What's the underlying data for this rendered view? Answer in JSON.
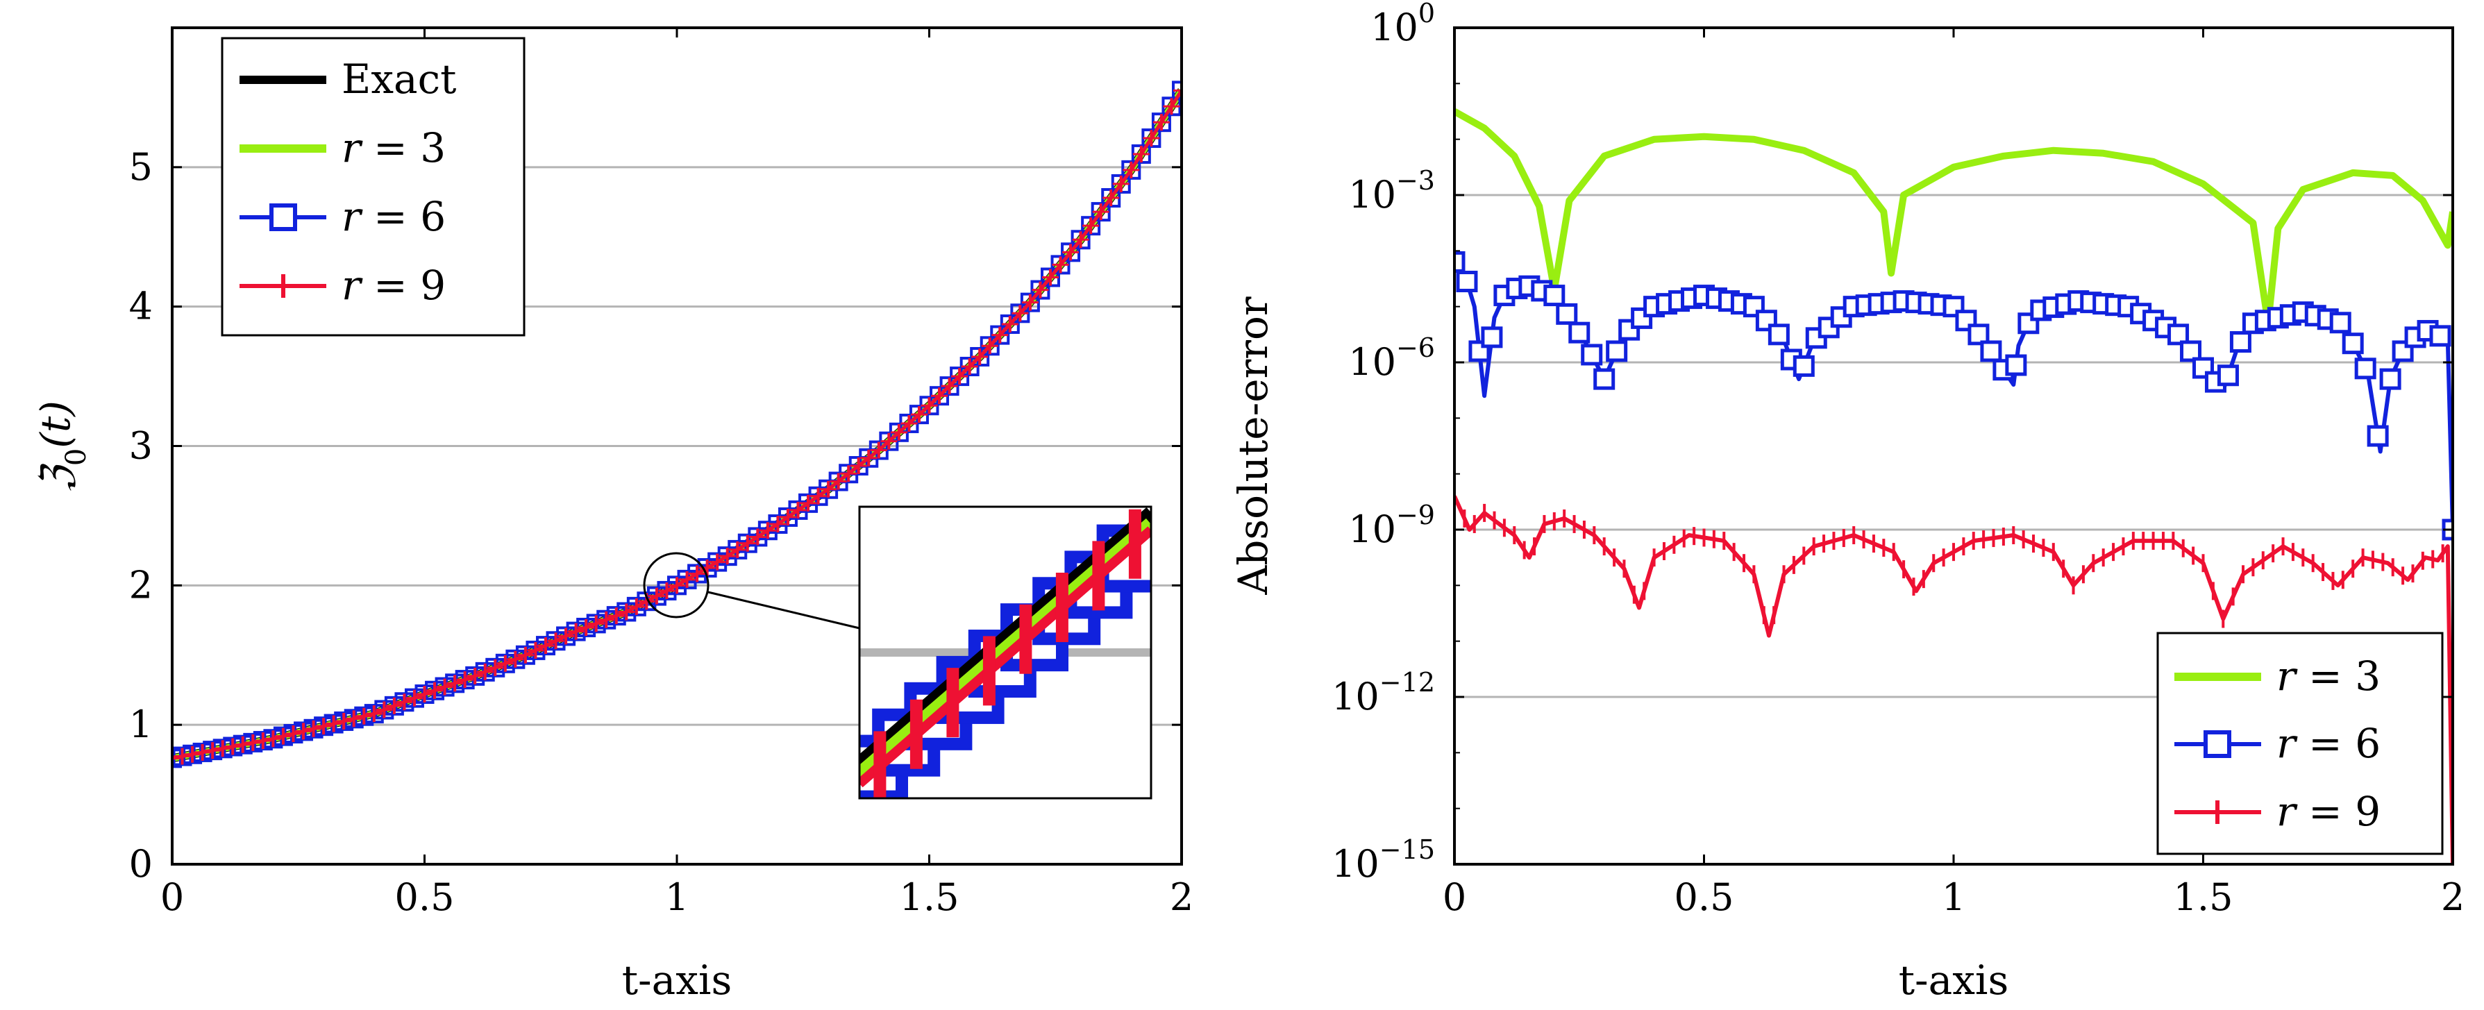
{
  "colors": {
    "exact": "#000000",
    "r3": "#99ee11",
    "r6": "#1122dd",
    "r9": "#ee1133",
    "grid": "#b4b4b4"
  },
  "chart_data": [
    {
      "id": "left",
      "type": "line",
      "xlabel": "t-axis",
      "ylabel_text": "ℨ",
      "ylabel_sub": "0",
      "ylabel_arg": "(t)",
      "xlim": [
        0,
        2
      ],
      "ylim": [
        0,
        6
      ],
      "xticks": [
        0,
        0.5,
        1,
        1.5,
        2
      ],
      "xtick_labels": [
        "0",
        "0.5",
        "1",
        "1.5",
        "2"
      ],
      "yticks": [
        0,
        1,
        2,
        3,
        4,
        5
      ],
      "ytick_labels": [
        "0",
        "1",
        "2",
        "3",
        "4",
        "5"
      ],
      "grid": "horizontal",
      "legend": {
        "position": "top-left",
        "entries": [
          {
            "label": "Exact",
            "series": "exact"
          },
          {
            "label_var": "r",
            "label_eq": " = 3",
            "series": "r3"
          },
          {
            "label_var": "r",
            "label_eq": " = 6",
            "series": "r6",
            "marker": "square"
          },
          {
            "label_var": "r",
            "label_eq": " = 9",
            "series": "r9",
            "marker": "plus"
          }
        ]
      },
      "x": [
        0,
        0.1,
        0.2,
        0.3,
        0.4,
        0.5,
        0.6,
        0.7,
        0.8,
        0.9,
        1.0,
        1.1,
        1.2,
        1.3,
        1.4,
        1.5,
        1.6,
        1.7,
        1.8,
        1.9,
        2.0
      ],
      "series": [
        {
          "name": "Exact",
          "key": "exact",
          "values": [
            0.76,
            0.83,
            0.9,
            0.99,
            1.08,
            1.22,
            1.35,
            1.5,
            1.67,
            1.81,
            2.0,
            2.21,
            2.44,
            2.69,
            2.97,
            3.29,
            3.64,
            4.03,
            4.48,
            4.98,
            5.55
          ]
        },
        {
          "name": "r = 3",
          "key": "r3",
          "values": [
            0.76,
            0.83,
            0.9,
            0.99,
            1.08,
            1.22,
            1.35,
            1.5,
            1.67,
            1.81,
            2.0,
            2.21,
            2.44,
            2.69,
            2.97,
            3.29,
            3.64,
            4.03,
            4.48,
            4.98,
            5.55
          ]
        },
        {
          "name": "r = 6",
          "key": "r6",
          "values": [
            0.76,
            0.83,
            0.9,
            0.99,
            1.08,
            1.22,
            1.35,
            1.5,
            1.67,
            1.81,
            2.0,
            2.21,
            2.44,
            2.69,
            2.97,
            3.29,
            3.64,
            4.03,
            4.48,
            4.98,
            5.55
          ]
        },
        {
          "name": "r = 9",
          "key": "r9",
          "values": [
            0.76,
            0.83,
            0.9,
            0.99,
            1.08,
            1.22,
            1.35,
            1.5,
            1.67,
            1.81,
            2.0,
            2.21,
            2.44,
            2.69,
            2.97,
            3.29,
            3.64,
            4.03,
            4.48,
            4.98,
            5.55
          ]
        }
      ],
      "annotation": {
        "type": "zoom-inset",
        "center": [
          1.0,
          2.0
        ],
        "note": "magnified view of curves near t = 1"
      }
    },
    {
      "id": "right",
      "type": "line",
      "yscale": "log",
      "xlabel": "t-axis",
      "ylabel": "Absolute-error",
      "xlim": [
        0,
        2
      ],
      "ylim_exp": [
        -15,
        0
      ],
      "xticks": [
        0,
        0.5,
        1,
        1.5,
        2
      ],
      "xtick_labels": [
        "0",
        "0.5",
        "1",
        "1.5",
        "2"
      ],
      "yticks_exp": [
        0,
        -3,
        -6,
        -9,
        -12,
        -15
      ],
      "ytick_base": "10",
      "ytick_exps": [
        "0",
        "−3",
        "−6",
        "−9",
        "−12",
        "−15"
      ],
      "grid": "horizontal",
      "legend": {
        "position": "bottom-right",
        "entries": [
          {
            "label_var": "r",
            "label_eq": " = 3",
            "series": "r3"
          },
          {
            "label_var": "r",
            "label_eq": " = 6",
            "series": "r6",
            "marker": "square"
          },
          {
            "label_var": "r",
            "label_eq": " = 9",
            "series": "r9",
            "marker": "plus"
          }
        ]
      },
      "series": [
        {
          "name": "r = 3",
          "key": "r3",
          "x": [
            0,
            0.06,
            0.12,
            0.17,
            0.2,
            0.23,
            0.3,
            0.4,
            0.5,
            0.6,
            0.7,
            0.8,
            0.86,
            0.875,
            0.9,
            1.0,
            1.1,
            1.2,
            1.3,
            1.4,
            1.5,
            1.6,
            1.63,
            1.65,
            1.7,
            1.8,
            1.88,
            1.94,
            1.99,
            2.0
          ],
          "y": [
            -1.5,
            -1.8,
            -2.3,
            -3.2,
            -4.7,
            -3.1,
            -2.3,
            -2.0,
            -1.95,
            -2.0,
            -2.2,
            -2.6,
            -3.3,
            -4.4,
            -3.0,
            -2.5,
            -2.3,
            -2.2,
            -2.25,
            -2.4,
            -2.8,
            -3.5,
            -5.3,
            -3.6,
            -2.9,
            -2.6,
            -2.65,
            -3.1,
            -3.9,
            -3.3
          ]
        },
        {
          "name": "r = 6",
          "key": "r6",
          "x": [
            0,
            0.02,
            0.04,
            0.06,
            0.08,
            0.1,
            0.14,
            0.2,
            0.26,
            0.3,
            0.34,
            0.4,
            0.5,
            0.6,
            0.66,
            0.69,
            0.72,
            0.8,
            0.9,
            1.0,
            1.06,
            1.12,
            1.13,
            1.16,
            1.25,
            1.35,
            1.45,
            1.5,
            1.54,
            1.57,
            1.6,
            1.7,
            1.78,
            1.83,
            1.855,
            1.875,
            1.9,
            1.94,
            1.97,
            1.99,
            2.0
          ],
          "y": [
            -4.2,
            -4.4,
            -5.0,
            -6.6,
            -5.2,
            -4.8,
            -4.6,
            -4.8,
            -5.6,
            -6.3,
            -5.5,
            -5.0,
            -4.8,
            -5.0,
            -5.6,
            -6.3,
            -5.6,
            -5.0,
            -4.9,
            -5.0,
            -5.6,
            -6.4,
            -5.7,
            -5.1,
            -4.9,
            -5.0,
            -5.5,
            -6.1,
            -6.5,
            -5.7,
            -5.3,
            -5.1,
            -5.3,
            -6.2,
            -7.6,
            -6.3,
            -5.8,
            -5.4,
            -5.5,
            -5.6,
            -9.0
          ]
        },
        {
          "name": "r = 9",
          "key": "r9",
          "x": [
            0,
            0.03,
            0.06,
            0.09,
            0.12,
            0.15,
            0.18,
            0.22,
            0.28,
            0.34,
            0.37,
            0.4,
            0.47,
            0.54,
            0.6,
            0.63,
            0.66,
            0.72,
            0.8,
            0.88,
            0.925,
            0.96,
            1.04,
            1.12,
            1.2,
            1.24,
            1.28,
            1.36,
            1.44,
            1.5,
            1.54,
            1.58,
            1.66,
            1.72,
            1.77,
            1.82,
            1.87,
            1.91,
            1.945,
            1.97,
            1.99,
            2.0
          ],
          "y": [
            -8.4,
            -9.0,
            -8.7,
            -8.9,
            -9.1,
            -9.5,
            -8.9,
            -8.8,
            -9.1,
            -9.7,
            -10.4,
            -9.5,
            -9.1,
            -9.2,
            -9.8,
            -10.9,
            -9.8,
            -9.3,
            -9.1,
            -9.4,
            -10.1,
            -9.6,
            -9.2,
            -9.1,
            -9.4,
            -10.0,
            -9.6,
            -9.2,
            -9.2,
            -9.6,
            -10.6,
            -9.8,
            -9.3,
            -9.6,
            -10.0,
            -9.5,
            -9.6,
            -9.9,
            -9.5,
            -9.55,
            -9.3,
            -15.0
          ]
        }
      ]
    }
  ]
}
